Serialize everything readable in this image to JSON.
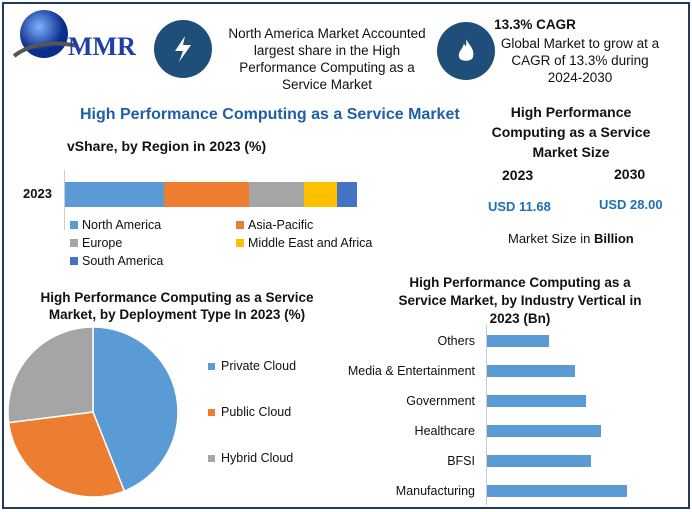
{
  "logo": {
    "text": "MMR"
  },
  "header": {
    "highlight1": "North America Market Accounted largest share in the High Performance Computing as a Service Market",
    "cagr_title": "13.3% CAGR",
    "cagr_text": "Global Market to grow at a CAGR of 13.3% during 2024-2030",
    "icon1": "lightning-icon",
    "icon2": "flame-icon"
  },
  "main_title": "High Performance Computing as a Service Market",
  "market_size": {
    "title": "High Performance Computing as a Service Market Size",
    "year1": "2023",
    "year2": "2030",
    "value1": "USD 11.68",
    "value2": "USD 28.00",
    "note_prefix": "Market Size in ",
    "note_unit": "Billion"
  },
  "colors": {
    "blue": "#5b9bd5",
    "orange": "#ed7d31",
    "gray": "#a5a5a5",
    "yellow": "#ffc000",
    "darkblue": "#4472c4",
    "navy": "#1f4e79",
    "accent": "#1f6fb5"
  },
  "chart_data": [
    {
      "type": "bar",
      "stacked": true,
      "orientation": "horizontal",
      "title": "vShare, by Region in 2023 (%)",
      "categories": [
        "2023"
      ],
      "series": [
        {
          "name": "North America",
          "values": [
            34
          ]
        },
        {
          "name": "Asia-Pacific",
          "values": [
            29
          ]
        },
        {
          "name": "Europe",
          "values": [
            19
          ]
        },
        {
          "name": "Middle East and Africa",
          "values": [
            11
          ]
        },
        {
          "name": "South America",
          "values": [
            7
          ]
        }
      ],
      "legend": "bottom"
    },
    {
      "type": "pie",
      "title": "High Performance Computing as a Service Market, by Deployment Type In 2023 (%)",
      "labels": [
        "Private Cloud",
        "Public Cloud",
        "Hybrid Cloud"
      ],
      "values": [
        44,
        29,
        27
      ],
      "legend": "right"
    },
    {
      "type": "bar",
      "orientation": "horizontal",
      "title": "High Performance Computing as a Service Market, by Industry Vertical in 2023 (Bn)",
      "categories": [
        "Others",
        "Media & Entertainment",
        "Government",
        "Healthcare",
        "BFSI",
        "Manufacturing"
      ],
      "values": [
        1.2,
        1.7,
        1.9,
        2.2,
        2.0,
        2.7
      ]
    }
  ]
}
